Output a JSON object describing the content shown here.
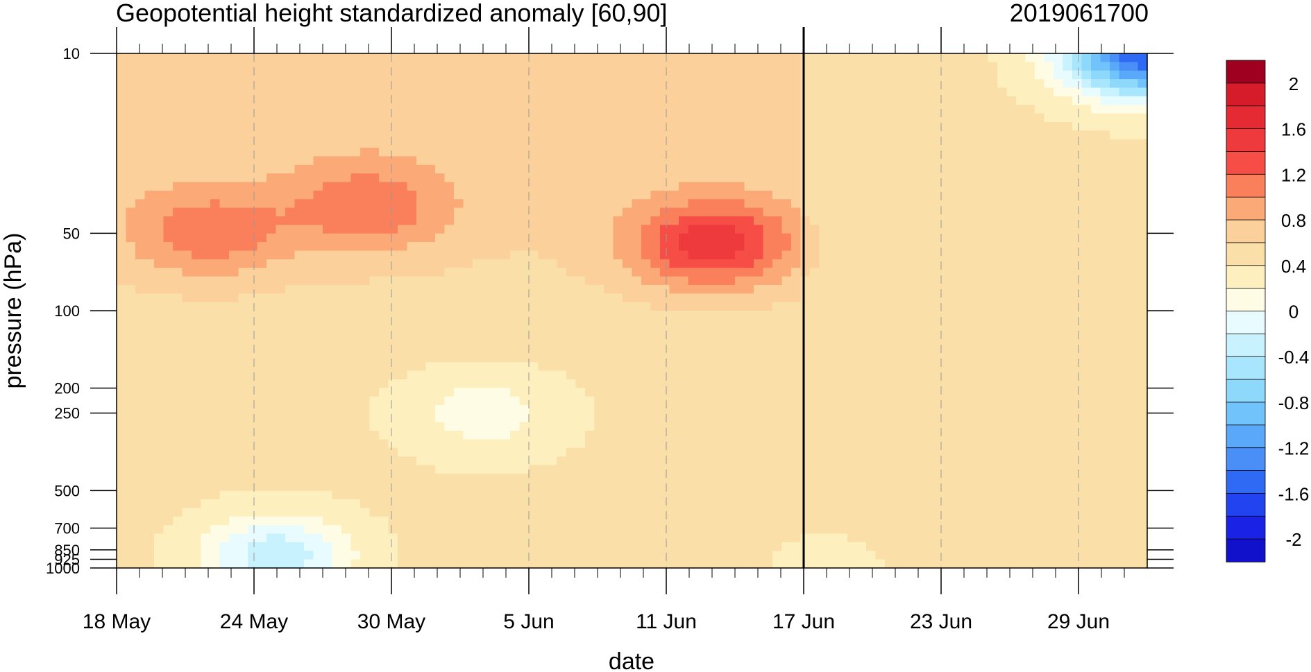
{
  "chart_data": {
    "type": "heatmap",
    "subtype": "filled-contour time-height section",
    "title": "Geopotential height standardized anomaly [60,90]",
    "title_right": "2019061700",
    "xlabel": "date",
    "ylabel": "pressure (hPa)",
    "x_ticks": [
      "18 May",
      "24 May",
      "30 May",
      "5 Jun",
      "11 Jun",
      "17 Jun",
      "23 Jun",
      "29 Jun"
    ],
    "x_range": [
      "18 May 2019",
      "2 Jul 2019"
    ],
    "y_scale": "log (reversed)",
    "y_ticks": [
      10,
      50,
      100,
      200,
      250,
      500,
      700,
      850,
      925,
      1000
    ],
    "y_tick_labels": [
      "10",
      "50",
      "100",
      "200",
      "250",
      "500",
      "700",
      "850",
      "925",
      "1000"
    ],
    "y_range": [
      1000,
      10
    ],
    "current_date_marker": "17 Jun",
    "grid": "dashed vertical lines at date ticks",
    "colorbar": {
      "placement": "right",
      "labels": [
        "2",
        "1.6",
        "1.2",
        "0.8",
        "0.4",
        "0",
        "-0.4",
        "-0.8",
        "-1.2",
        "-1.6",
        "-2"
      ],
      "levels": [
        -2.2,
        -2,
        -1.8,
        -1.6,
        -1.4,
        -1.2,
        -1,
        -0.8,
        -0.6,
        -0.4,
        -0.2,
        0,
        0.2,
        0.4,
        0.6,
        0.8,
        1,
        1.2,
        1.4,
        1.6,
        1.8,
        2,
        2.2
      ],
      "colors": [
        "#1111cc",
        "#1a22e6",
        "#2244f0",
        "#2f6af5",
        "#4a8ef7",
        "#5aa8fa",
        "#70c4fb",
        "#8ed8fc",
        "#a8e6fd",
        "#c8f2fe",
        "#e8fbff",
        "#fffce6",
        "#fdefbe",
        "#fbdfa8",
        "#fbd09a",
        "#fba976",
        "#fa7f5b",
        "#f64e46",
        "#ee3a3c",
        "#e52a33",
        "#d61c2b",
        "#a0001f"
      ]
    },
    "features": [
      {
        "type": "max",
        "date": "13 Jun",
        "pressure_hPa": 55,
        "value": 1.4
      },
      {
        "type": "max",
        "date": "29 May",
        "pressure_hPa": 40,
        "value": 1.0
      },
      {
        "type": "max",
        "date": "22 May",
        "pressure_hPa": 50,
        "value": 1.0
      },
      {
        "type": "min",
        "date": "2 Jul",
        "pressure_hPa": 10,
        "value": -1.6
      },
      {
        "type": "local",
        "date": "3 Jun",
        "pressure_hPa": 250,
        "value": 0.1
      },
      {
        "type": "local",
        "date": "25 May",
        "pressure_hPa": 900,
        "value": 0.0
      }
    ]
  }
}
